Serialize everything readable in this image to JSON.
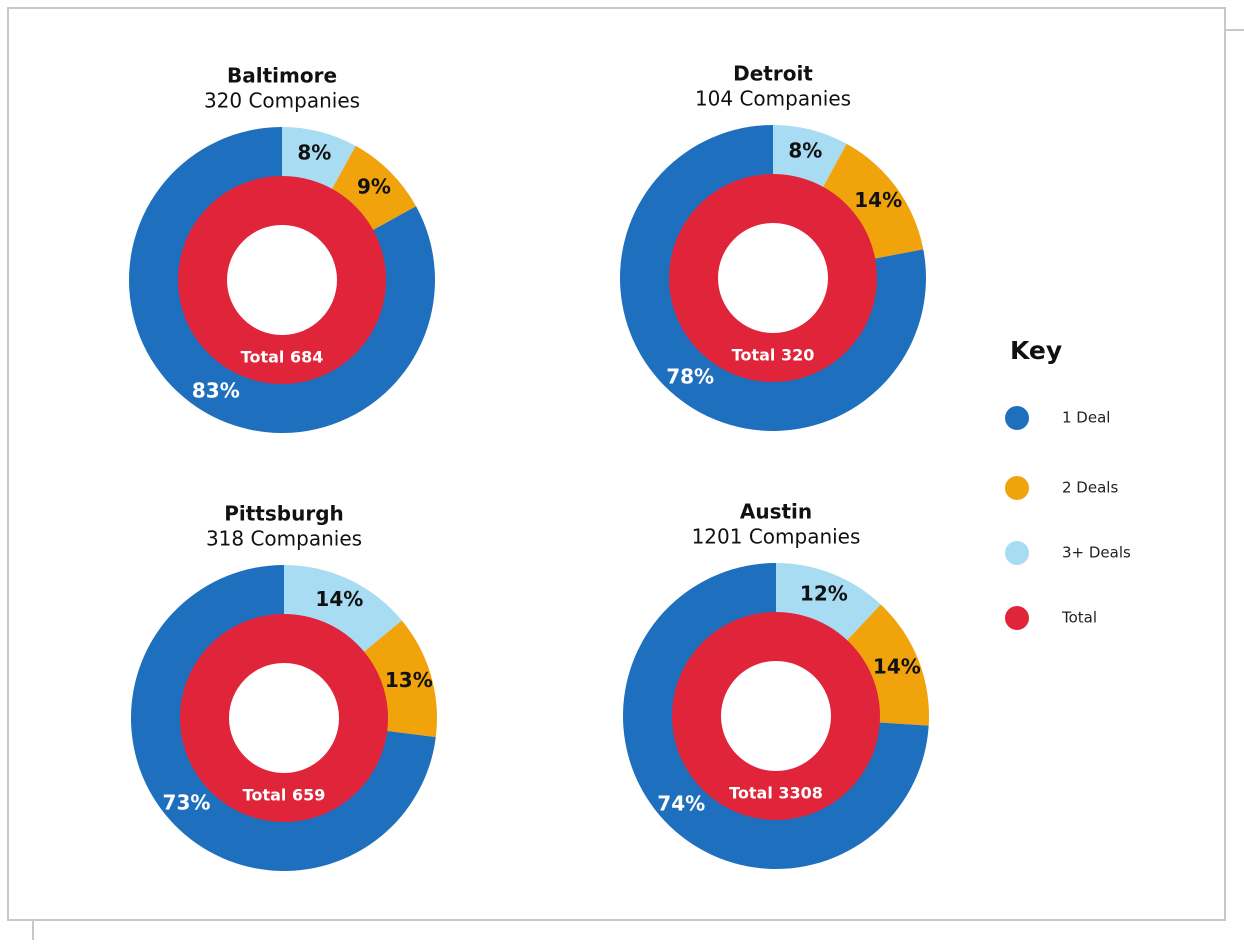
{
  "chart_data": [
    {
      "type": "donut",
      "title": "Baltimore",
      "subtitle": "320 Companies",
      "values": [
        83,
        9,
        8
      ],
      "value_labels": [
        "83%",
        "9%",
        "8%"
      ],
      "annotation": "Total 684"
    },
    {
      "type": "donut",
      "title": "Detroit",
      "subtitle": "104 Companies",
      "values": [
        78,
        14,
        8
      ],
      "value_labels": [
        "78%",
        "14%",
        "8%"
      ],
      "annotation": "Total 320"
    },
    {
      "type": "donut",
      "title": "Pittsburgh",
      "subtitle": "318 Companies",
      "values": [
        73,
        13,
        14
      ],
      "value_labels": [
        "73%",
        "13%",
        "14%"
      ],
      "annotation": "Total 659"
    },
    {
      "type": "donut",
      "title": "Austin",
      "subtitle": "1201 Companies",
      "values": [
        74,
        14,
        12
      ],
      "value_labels": [
        "74%",
        "14%",
        "12%"
      ],
      "annotation": "Total 3308"
    }
  ],
  "legend": {
    "title": "Key",
    "entries": [
      {
        "name": "1 Deal",
        "color": "#1f6fbf"
      },
      {
        "name": "2 Deals",
        "color": "#f0a30a"
      },
      {
        "name": "3+ Deals",
        "color": "#a8dcf3"
      },
      {
        "name": "Total",
        "color": "#e0243a"
      }
    ]
  }
}
